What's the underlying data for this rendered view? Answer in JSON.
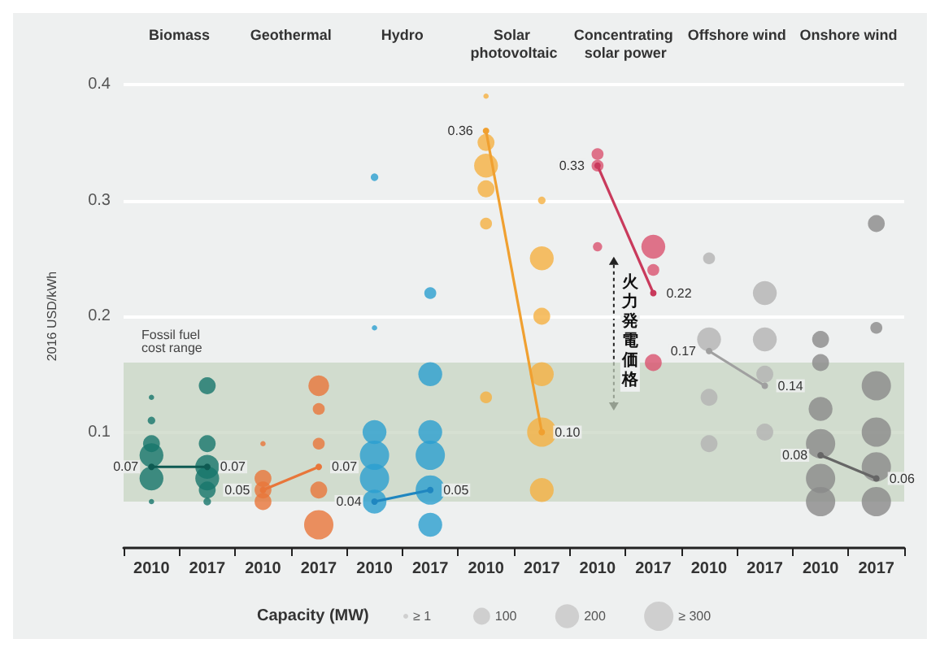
{
  "chart_data": {
    "type": "bubble",
    "ylabel": "2016 USD/kWh",
    "xlabel": "Capacity (MW)",
    "categories": [
      "2010",
      "2017",
      "2010",
      "2017",
      "2010",
      "2017",
      "2010",
      "2017",
      "2010",
      "2017",
      "2010",
      "2017",
      "2010",
      "2017"
    ],
    "ylim": [
      0,
      0.4
    ],
    "yticks": [
      0.1,
      0.2,
      0.3,
      0.4
    ],
    "grid": "y",
    "marker": "circle",
    "size_legend": [
      {
        "value": 1,
        "label": "≥ 1"
      },
      100,
      200,
      {
        "value": 300,
        "label": "≥ 300"
      }
    ],
    "bands": [
      {
        "axis": "y",
        "from": 0.04,
        "to": 0.16,
        "label": "Fossil fuel cost range",
        "color": "#c5d3bf"
      }
    ],
    "annotations": [
      "Biomass",
      "Geothermal",
      "Hydro",
      "Solar photovoltaic",
      "Concentrating solar power",
      "Offshore wind",
      "Onshore wind",
      "火力発電価格"
    ],
    "series": [
      {
        "color": "#17766b",
        "values": [
          0.13,
          0.14,
          null,
          null,
          null,
          null,
          null,
          null,
          null,
          null,
          null,
          null,
          null,
          null
        ],
        "sizes": [
          10,
          100,
          null,
          null,
          null,
          null,
          null,
          null,
          null,
          null,
          null,
          null,
          null,
          null
        ]
      },
      {
        "color": "#17766b",
        "values": [
          0.11,
          0.09,
          null,
          null,
          null,
          null,
          null,
          null,
          null,
          null,
          null,
          null,
          null,
          null
        ],
        "sizes": [
          20,
          100,
          null,
          null,
          null,
          null,
          null,
          null,
          null,
          null,
          null,
          null,
          null,
          null
        ]
      },
      {
        "color": "#17766b",
        "values": [
          0.09,
          0.07,
          null,
          null,
          null,
          null,
          null,
          null,
          null,
          null,
          null,
          null,
          null,
          null
        ],
        "sizes": [
          100,
          200,
          null,
          null,
          null,
          null,
          null,
          null,
          null,
          null,
          null,
          null,
          null,
          null
        ]
      },
      {
        "color": "#17766b",
        "values": [
          0.08,
          0.06,
          null,
          null,
          null,
          null,
          null,
          null,
          null,
          null,
          null,
          null,
          null,
          null
        ],
        "sizes": [
          200,
          200,
          null,
          null,
          null,
          null,
          null,
          null,
          null,
          null,
          null,
          null,
          null,
          null
        ]
      },
      {
        "color": "#17766b",
        "values": [
          0.06,
          0.05,
          null,
          null,
          null,
          null,
          null,
          null,
          null,
          null,
          null,
          null,
          null,
          null
        ],
        "sizes": [
          200,
          100,
          null,
          null,
          null,
          null,
          null,
          null,
          null,
          null,
          null,
          null,
          null,
          null
        ]
      },
      {
        "color": "#17766b",
        "values": [
          0.04,
          0.04,
          null,
          null,
          null,
          null,
          null,
          null,
          null,
          null,
          null,
          null,
          null,
          null
        ],
        "sizes": [
          10,
          20,
          null,
          null,
          null,
          null,
          null,
          null,
          null,
          null,
          null,
          null,
          null,
          null
        ]
      },
      {
        "color": "#e8763a",
        "values": [
          null,
          null,
          0.09,
          0.14,
          null,
          null,
          null,
          null,
          null,
          null,
          null,
          null,
          null,
          null
        ],
        "sizes": [
          null,
          null,
          10,
          150,
          null,
          null,
          null,
          null,
          null,
          null,
          null,
          null,
          null,
          null
        ]
      },
      {
        "color": "#e8763a",
        "values": [
          null,
          null,
          0.06,
          0.12,
          null,
          null,
          null,
          null,
          null,
          null,
          null,
          null,
          null,
          null
        ],
        "sizes": [
          null,
          null,
          100,
          50,
          null,
          null,
          null,
          null,
          null,
          null,
          null,
          null,
          null,
          null
        ]
      },
      {
        "color": "#e8763a",
        "values": [
          null,
          null,
          0.05,
          0.09,
          null,
          null,
          null,
          null,
          null,
          null,
          null,
          null,
          null,
          null
        ],
        "sizes": [
          null,
          null,
          100,
          50,
          null,
          null,
          null,
          null,
          null,
          null,
          null,
          null,
          null,
          null
        ]
      },
      {
        "color": "#e8763a",
        "values": [
          null,
          null,
          0.04,
          0.05,
          null,
          null,
          null,
          null,
          null,
          null,
          null,
          null,
          null,
          null
        ],
        "sizes": [
          null,
          null,
          100,
          100,
          null,
          null,
          null,
          null,
          null,
          null,
          null,
          null,
          null,
          null
        ]
      },
      {
        "color": "#e8763a",
        "values": [
          null,
          null,
          null,
          0.02,
          null,
          null,
          null,
          null,
          null,
          null,
          null,
          null,
          null,
          null
        ],
        "sizes": [
          null,
          null,
          null,
          300,
          null,
          null,
          null,
          null,
          null,
          null,
          null,
          null,
          null,
          null
        ]
      },
      {
        "color": "#2a9fd0",
        "values": [
          null,
          null,
          null,
          null,
          0.32,
          0.22,
          null,
          null,
          null,
          null,
          null,
          null,
          null,
          null
        ],
        "sizes": [
          null,
          null,
          null,
          null,
          20,
          50,
          null,
          null,
          null,
          null,
          null,
          null,
          null,
          null
        ]
      },
      {
        "color": "#2a9fd0",
        "values": [
          null,
          null,
          null,
          null,
          0.19,
          0.15,
          null,
          null,
          null,
          null,
          null,
          null,
          null,
          null
        ],
        "sizes": [
          null,
          null,
          null,
          null,
          10,
          200,
          null,
          null,
          null,
          null,
          null,
          null,
          null,
          null
        ]
      },
      {
        "color": "#2a9fd0",
        "values": [
          null,
          null,
          null,
          null,
          0.1,
          0.1,
          null,
          null,
          null,
          null,
          null,
          null,
          null,
          null
        ],
        "sizes": [
          null,
          null,
          null,
          null,
          200,
          200,
          null,
          null,
          null,
          null,
          null,
          null,
          null,
          null
        ]
      },
      {
        "color": "#2a9fd0",
        "values": [
          null,
          null,
          null,
          null,
          0.08,
          0.08,
          null,
          null,
          null,
          null,
          null,
          null,
          null,
          null
        ],
        "sizes": [
          null,
          null,
          null,
          null,
          300,
          300,
          null,
          null,
          null,
          null,
          null,
          null,
          null,
          null
        ]
      },
      {
        "color": "#2a9fd0",
        "values": [
          null,
          null,
          null,
          null,
          0.06,
          0.05,
          null,
          null,
          null,
          null,
          null,
          null,
          null,
          null
        ],
        "sizes": [
          null,
          null,
          null,
          null,
          300,
          300,
          null,
          null,
          null,
          null,
          null,
          null,
          null,
          null
        ]
      },
      {
        "color": "#2a9fd0",
        "values": [
          null,
          null,
          null,
          null,
          0.04,
          0.02,
          null,
          null,
          null,
          null,
          null,
          null,
          null,
          null
        ],
        "sizes": [
          null,
          null,
          null,
          null,
          200,
          200,
          null,
          null,
          null,
          null,
          null,
          null,
          null,
          null
        ]
      },
      {
        "color": "#f5b041",
        "values": [
          null,
          null,
          null,
          null,
          null,
          null,
          0.39,
          0.3,
          null,
          null,
          null,
          null,
          null,
          null
        ],
        "sizes": [
          null,
          null,
          null,
          null,
          null,
          null,
          10,
          20,
          null,
          null,
          null,
          null,
          null,
          null
        ]
      },
      {
        "color": "#f5b041",
        "values": [
          null,
          null,
          null,
          null,
          null,
          null,
          0.35,
          0.25,
          null,
          null,
          null,
          null,
          null,
          null
        ],
        "sizes": [
          null,
          null,
          null,
          null,
          null,
          null,
          100,
          200,
          null,
          null,
          null,
          null,
          null,
          null
        ]
      },
      {
        "color": "#f5b041",
        "values": [
          null,
          null,
          null,
          null,
          null,
          null,
          0.33,
          0.2,
          null,
          null,
          null,
          null,
          null,
          null
        ],
        "sizes": [
          null,
          null,
          null,
          null,
          null,
          null,
          200,
          100,
          null,
          null,
          null,
          null,
          null,
          null
        ]
      },
      {
        "color": "#f5b041",
        "values": [
          null,
          null,
          null,
          null,
          null,
          null,
          0.31,
          0.15,
          null,
          null,
          null,
          null,
          null,
          null
        ],
        "sizes": [
          null,
          null,
          null,
          null,
          null,
          null,
          100,
          200,
          null,
          null,
          null,
          null,
          null,
          null
        ]
      },
      {
        "color": "#f5b041",
        "values": [
          null,
          null,
          null,
          null,
          null,
          null,
          0.28,
          0.1,
          null,
          null,
          null,
          null,
          null,
          null
        ],
        "sizes": [
          null,
          null,
          null,
          null,
          null,
          null,
          50,
          300,
          null,
          null,
          null,
          null,
          null,
          null
        ]
      },
      {
        "color": "#f5b041",
        "values": [
          null,
          null,
          null,
          null,
          null,
          null,
          0.13,
          0.05,
          null,
          null,
          null,
          null,
          null,
          null
        ],
        "sizes": [
          null,
          null,
          null,
          null,
          null,
          null,
          50,
          200,
          null,
          null,
          null,
          null,
          null,
          null
        ]
      },
      {
        "color": "#d9536f",
        "values": [
          null,
          null,
          null,
          null,
          null,
          null,
          null,
          null,
          0.34,
          0.26,
          null,
          null,
          null,
          null
        ],
        "sizes": [
          null,
          null,
          null,
          null,
          null,
          null,
          null,
          null,
          50,
          200,
          null,
          null,
          null,
          null
        ]
      },
      {
        "color": "#d9536f",
        "values": [
          null,
          null,
          null,
          null,
          null,
          null,
          null,
          null,
          0.33,
          0.24,
          null,
          null,
          null,
          null
        ],
        "sizes": [
          null,
          null,
          null,
          null,
          null,
          null,
          null,
          null,
          50,
          50,
          null,
          null,
          null,
          null
        ]
      },
      {
        "color": "#d9536f",
        "values": [
          null,
          null,
          null,
          null,
          null,
          null,
          null,
          null,
          0.26,
          0.16,
          null,
          null,
          null,
          null
        ],
        "sizes": [
          null,
          null,
          null,
          null,
          null,
          null,
          null,
          null,
          30,
          100,
          null,
          null,
          null,
          null
        ]
      },
      {
        "color": "#b3b3b3",
        "values": [
          null,
          null,
          null,
          null,
          null,
          null,
          null,
          null,
          null,
          null,
          0.25,
          0.22,
          null,
          null
        ],
        "sizes": [
          null,
          null,
          null,
          null,
          null,
          null,
          null,
          null,
          null,
          null,
          50,
          200,
          null,
          null
        ]
      },
      {
        "color": "#b3b3b3",
        "values": [
          null,
          null,
          null,
          null,
          null,
          null,
          null,
          null,
          null,
          null,
          0.18,
          0.18,
          null,
          null
        ],
        "sizes": [
          null,
          null,
          null,
          null,
          null,
          null,
          null,
          null,
          null,
          null,
          200,
          200,
          null,
          null
        ]
      },
      {
        "color": "#b3b3b3",
        "values": [
          null,
          null,
          null,
          null,
          null,
          null,
          null,
          null,
          null,
          null,
          0.13,
          0.15,
          null,
          null
        ],
        "sizes": [
          null,
          null,
          null,
          null,
          null,
          null,
          null,
          null,
          null,
          null,
          100,
          100,
          null,
          null
        ]
      },
      {
        "color": "#b3b3b3",
        "values": [
          null,
          null,
          null,
          null,
          null,
          null,
          null,
          null,
          null,
          null,
          0.09,
          0.1,
          null,
          null
        ],
        "sizes": [
          null,
          null,
          null,
          null,
          null,
          null,
          null,
          null,
          null,
          null,
          100,
          100,
          null,
          null
        ]
      },
      {
        "color": "#8a8a8a",
        "values": [
          null,
          null,
          null,
          null,
          null,
          null,
          null,
          null,
          null,
          null,
          null,
          null,
          0.18,
          0.28
        ],
        "sizes": [
          null,
          null,
          null,
          null,
          null,
          null,
          null,
          null,
          null,
          null,
          null,
          null,
          100,
          100
        ]
      },
      {
        "color": "#8a8a8a",
        "values": [
          null,
          null,
          null,
          null,
          null,
          null,
          null,
          null,
          null,
          null,
          null,
          null,
          0.16,
          0.19
        ],
        "sizes": [
          null,
          null,
          null,
          null,
          null,
          null,
          null,
          null,
          null,
          null,
          null,
          null,
          100,
          50
        ]
      },
      {
        "color": "#8a8a8a",
        "values": [
          null,
          null,
          null,
          null,
          null,
          null,
          null,
          null,
          null,
          null,
          null,
          null,
          0.12,
          0.14
        ],
        "sizes": [
          null,
          null,
          null,
          null,
          null,
          null,
          null,
          null,
          null,
          null,
          null,
          null,
          200,
          300
        ]
      },
      {
        "color": "#8a8a8a",
        "values": [
          null,
          null,
          null,
          null,
          null,
          null,
          null,
          null,
          null,
          null,
          null,
          null,
          0.09,
          0.1
        ],
        "sizes": [
          null,
          null,
          null,
          null,
          null,
          null,
          null,
          null,
          null,
          null,
          null,
          null,
          300,
          300
        ]
      },
      {
        "color": "#8a8a8a",
        "values": [
          null,
          null,
          null,
          null,
          null,
          null,
          null,
          null,
          null,
          null,
          null,
          null,
          0.06,
          0.07
        ],
        "sizes": [
          null,
          null,
          null,
          null,
          null,
          null,
          null,
          null,
          null,
          null,
          null,
          null,
          300,
          300
        ]
      },
      {
        "color": "#8a8a8a",
        "values": [
          null,
          null,
          null,
          null,
          null,
          null,
          null,
          null,
          null,
          null,
          null,
          null,
          0.04,
          0.04
        ],
        "sizes": [
          null,
          null,
          null,
          null,
          null,
          null,
          null,
          null,
          null,
          null,
          null,
          null,
          300,
          300
        ]
      },
      {
        "type": "line",
        "color": "#0e5a52",
        "values": [
          0.07,
          0.07,
          null,
          null,
          null,
          null,
          null,
          null,
          null,
          null,
          null,
          null,
          null,
          null
        ],
        "value_labels": [
          "0.07",
          "0.07",
          null,
          null,
          null,
          null,
          null,
          null,
          null,
          null,
          null,
          null,
          null,
          null
        ]
      },
      {
        "type": "line",
        "color": "#e8763a",
        "values": [
          null,
          null,
          0.05,
          0.07,
          null,
          null,
          null,
          null,
          null,
          null,
          null,
          null,
          null,
          null
        ],
        "value_labels": [
          null,
          null,
          "0.05",
          "0.07",
          null,
          null,
          null,
          null,
          null,
          null,
          null,
          null,
          null,
          null
        ]
      },
      {
        "type": "line",
        "color": "#1f86c0",
        "values": [
          null,
          null,
          null,
          null,
          0.04,
          0.05,
          null,
          null,
          null,
          null,
          null,
          null,
          null,
          null
        ],
        "value_labels": [
          null,
          null,
          null,
          null,
          "0.04",
          "0.05",
          null,
          null,
          null,
          null,
          null,
          null,
          null,
          null
        ]
      },
      {
        "type": "line",
        "color": "#f0a030",
        "values": [
          null,
          null,
          null,
          null,
          null,
          null,
          0.36,
          0.1,
          null,
          null,
          null,
          null,
          null,
          null
        ],
        "value_labels": [
          null,
          null,
          null,
          null,
          null,
          null,
          "0.36",
          "0.10",
          null,
          null,
          null,
          null,
          null,
          null
        ]
      },
      {
        "type": "line",
        "color": "#c93a5c",
        "values": [
          null,
          null,
          null,
          null,
          null,
          null,
          null,
          null,
          0.33,
          0.22,
          null,
          null,
          null,
          null
        ],
        "value_labels": [
          null,
          null,
          null,
          null,
          null,
          null,
          null,
          null,
          "0.33",
          "0.22",
          null,
          null,
          null,
          null
        ]
      },
      {
        "type": "line",
        "color": "#a0a0a0",
        "values": [
          null,
          null,
          null,
          null,
          null,
          null,
          null,
          null,
          null,
          null,
          0.17,
          0.14,
          null,
          null
        ],
        "value_labels": [
          null,
          null,
          null,
          null,
          null,
          null,
          null,
          null,
          null,
          null,
          "0.17",
          "0.14",
          null,
          null
        ]
      },
      {
        "type": "line",
        "color": "#666666",
        "values": [
          null,
          null,
          null,
          null,
          null,
          null,
          null,
          null,
          null,
          null,
          null,
          null,
          0.08,
          0.06
        ],
        "value_labels": [
          null,
          null,
          null,
          null,
          null,
          null,
          null,
          null,
          null,
          null,
          null,
          null,
          "0.08",
          "0.06"
        ]
      }
    ]
  }
}
